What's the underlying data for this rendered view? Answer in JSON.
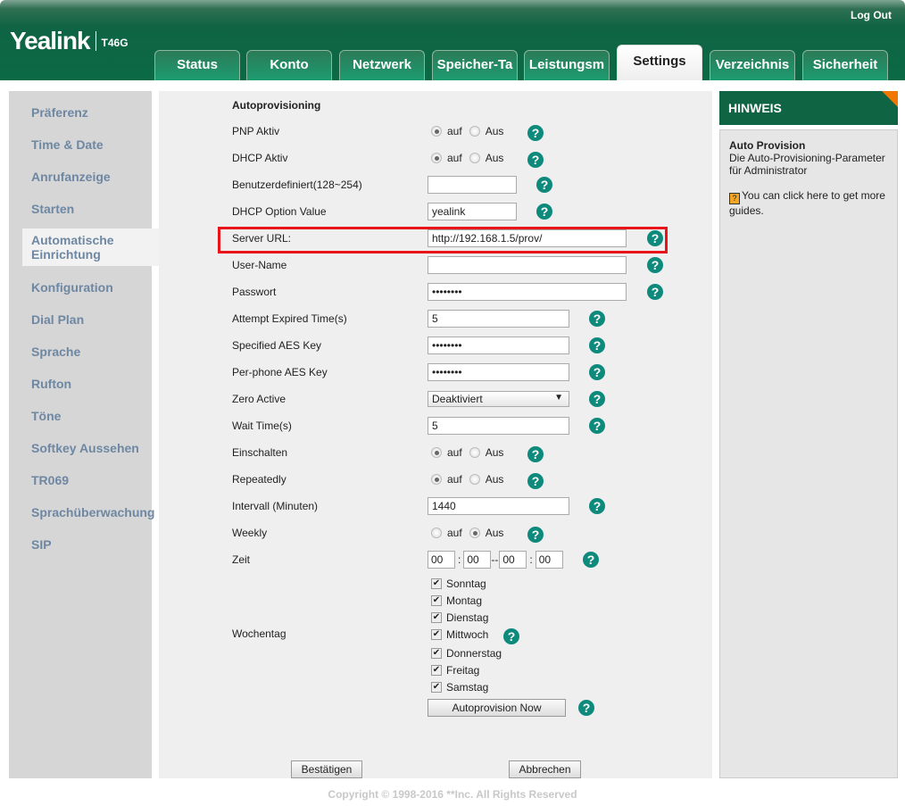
{
  "header": {
    "brand": "Yealink",
    "model": "T46G",
    "logout": "Log Out"
  },
  "tabs": [
    "Status",
    "Konto",
    "Netzwerk",
    "Speicher-Ta",
    "Leistungsm",
    "Settings",
    "Verzeichnis",
    "Sicherheit"
  ],
  "active_tab": "Settings",
  "sidebar": [
    "Präferenz",
    "Time & Date",
    "Anrufanzeige",
    "Starten",
    "Automatische Einrichtung",
    "Konfiguration",
    "Dial Plan",
    "Sprache",
    "Rufton",
    "Töne",
    "Softkey Aussehen",
    "TR069",
    "Sprachüberwachung",
    "SIP"
  ],
  "active_sidebar": "Automatische Einrichtung",
  "form": {
    "heading": "Autoprovisioning",
    "on": "auf",
    "off": "Aus",
    "pnp": {
      "label": "PNP Aktiv",
      "value": "auf"
    },
    "dhcp": {
      "label": "DHCP Aktiv",
      "value": "auf"
    },
    "custom": {
      "label": "Benutzerdefiniert(128~254)",
      "value": ""
    },
    "dhcp_option": {
      "label": "DHCP Option Value",
      "value": "yealink"
    },
    "server_url": {
      "label": "Server URL:",
      "value": "http://192.168.1.5/prov/"
    },
    "username": {
      "label": "User-Name",
      "value": ""
    },
    "password": {
      "label": "Passwort",
      "value": "••••••••"
    },
    "attempt": {
      "label": "Attempt Expired Time(s)",
      "value": "5"
    },
    "aes": {
      "label": "Specified AES Key",
      "value": "••••••••"
    },
    "perphone_aes": {
      "label": "Per-phone AES Key",
      "value": "••••••••"
    },
    "zero": {
      "label": "Zero Active",
      "value": "Deaktiviert"
    },
    "wait": {
      "label": "Wait Time(s)",
      "value": "5"
    },
    "einschalten": {
      "label": "Einschalten",
      "value": "auf"
    },
    "repeatedly": {
      "label": "Repeatedly",
      "value": "auf"
    },
    "intervall": {
      "label": "Intervall (Minuten)",
      "value": "1440"
    },
    "weekly": {
      "label": "Weekly",
      "value": "Aus"
    },
    "zeit": {
      "label": "Zeit",
      "h1": "00",
      "m1": "00",
      "h2": "00",
      "m2": "00",
      "sep": ":",
      "range": "--"
    },
    "wochentag": {
      "label": "Wochentag",
      "days": [
        "Sonntag",
        "Montag",
        "Dienstag",
        "Mittwoch",
        "Donnerstag",
        "Freitag",
        "Samstag"
      ],
      "checked": [
        true,
        true,
        true,
        true,
        true,
        true,
        true
      ]
    },
    "autoprov_button": "Autoprovision Now",
    "confirm": "Bestätigen",
    "cancel": "Abbrechen",
    "help": "?"
  },
  "hint": {
    "title": "HINWEIS",
    "subtitle": "Auto Provision",
    "text": "Die Auto-Provisioning-Parameter für Administrator",
    "guide_icon": "?",
    "guide": "You can click here to get more guides."
  },
  "footer": "Copyright © 1998-2016 **Inc. All Rights Reserved",
  "colors": {
    "brand_green": "#0f6443",
    "help": "#0e8a7c",
    "highlight": "#e8141a",
    "corner": "#f07800"
  }
}
